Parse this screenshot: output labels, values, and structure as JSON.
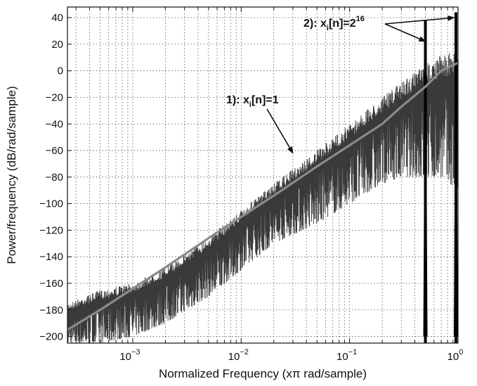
{
  "chart_data": {
    "type": "line",
    "title": "",
    "xlabel": "Normalized Frequency (xπ rad/sample)",
    "ylabel": "Power/frequency (dB/rad/sample)",
    "xscale": "log",
    "xlim": [
      0.00025,
      1.0
    ],
    "ylim": [
      -205,
      48
    ],
    "grid": true,
    "x_ticks": [
      {
        "value": 0.001,
        "base": "10",
        "exp": "−3"
      },
      {
        "value": 0.01,
        "base": "10",
        "exp": "−2"
      },
      {
        "value": 0.1,
        "base": "10",
        "exp": "−1"
      },
      {
        "value": 1,
        "base": "10",
        "exp": "0"
      }
    ],
    "y_ticks": [
      {
        "value": 40,
        "label": "40"
      },
      {
        "value": 20,
        "label": "20"
      },
      {
        "value": 0,
        "label": "0"
      },
      {
        "value": -20,
        "label": "−20"
      },
      {
        "value": -40,
        "label": "−40"
      },
      {
        "value": -60,
        "label": "−60"
      },
      {
        "value": -80,
        "label": "−80"
      },
      {
        "value": -100,
        "label": "−100"
      },
      {
        "value": -120,
        "label": "−120"
      },
      {
        "value": -140,
        "label": "−140"
      },
      {
        "value": -160,
        "label": "−160"
      },
      {
        "value": -180,
        "label": "−180"
      },
      {
        "value": -200,
        "label": "−200"
      }
    ],
    "series": [
      {
        "color": "#3a3a3a",
        "style": "noisy band",
        "x": [
          0.00025,
          0.0005,
          0.001,
          0.002,
          0.005,
          0.01,
          0.02,
          0.05,
          0.1,
          0.2,
          0.3,
          0.5,
          0.7,
          1.0
        ],
        "upper": [
          -175,
          -165,
          -160,
          -148,
          -125,
          -105,
          -85,
          -60,
          -40,
          -20,
          -8,
          5,
          12,
          15
        ],
        "lower": [
          -205,
          -205,
          -200,
          -190,
          -170,
          -150,
          -130,
          -115,
          -100,
          -85,
          -80,
          -80,
          -80,
          -90
        ]
      },
      {
        "color": "#8a8a8a",
        "style": "smooth line",
        "x": [
          0.00025,
          0.0005,
          0.001,
          0.002,
          0.005,
          0.01,
          0.02,
          0.05,
          0.1,
          0.2,
          0.3,
          0.5,
          0.7,
          1.0
        ],
        "y": [
          -195,
          -180,
          -164,
          -148,
          -126,
          -110,
          -94,
          -72,
          -56,
          -40,
          -27,
          -12,
          0,
          6
        ]
      },
      {
        "color": "#000000",
        "style": "spikes",
        "x": [
          0.5,
          1.0
        ],
        "y": [
          38,
          44
        ],
        "base": -200
      }
    ],
    "annotations": [
      {
        "id": "anno1",
        "prefix": "1): x",
        "sub": "i",
        "suffix": "[n]=1",
        "arrow_to": {
          "x": 0.03,
          "y": -62
        }
      },
      {
        "id": "anno2",
        "prefix": "2): x",
        "sub": "i",
        "suffix": "[n]=2",
        "sup": "16",
        "arrow_to": [
          {
            "x": 0.5,
            "y": 38
          },
          {
            "x": 0.92,
            "y": 40
          }
        ]
      }
    ]
  }
}
